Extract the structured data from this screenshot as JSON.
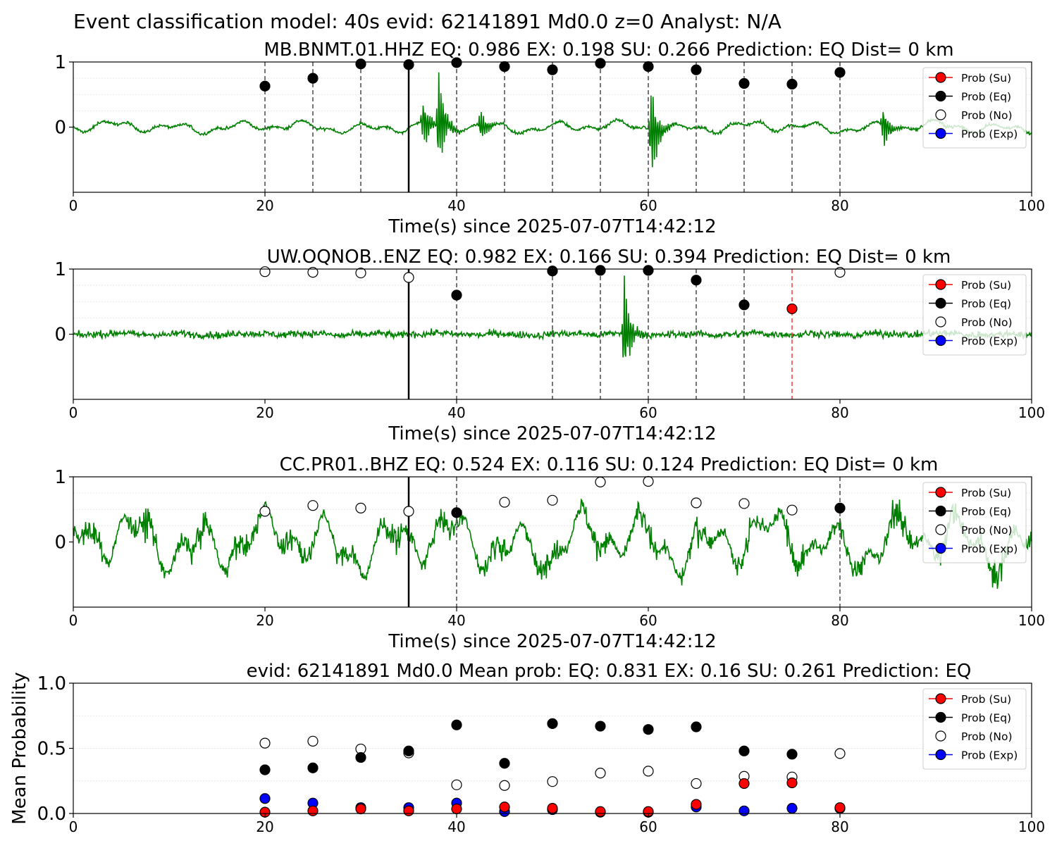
{
  "suptitle": "Event classification model: 40s evid: 62141891 Md0.0 z=0 Analyst: N/A",
  "legend": [
    {
      "label": "Prob (Su)",
      "color": "#ff0000",
      "fill": true
    },
    {
      "label": "Prob (Eq)",
      "color": "#000000",
      "fill": true
    },
    {
      "label": "Prob (No)",
      "color": "#000000",
      "fill": false
    },
    {
      "label": "Prob (Exp)",
      "color": "#0000ff",
      "fill": true
    }
  ],
  "chart_data": [
    {
      "type": "line",
      "title": "MB.BNMT.01.HHZ   EQ: 0.986  EX: 0.198  SU: 0.266   Prediction: EQ    Dist= 0 km",
      "xlabel": "Time(s) since 2025-07-07T14:42:12",
      "ylabel": "",
      "xlim": [
        0,
        100
      ],
      "ylim": [
        -1,
        1
      ],
      "xticks": [
        "0",
        "20",
        "40",
        "60",
        "80",
        "100"
      ],
      "yticks": [
        "0",
        "1"
      ],
      "waveform_color": "#008000",
      "arrival_time": 35,
      "window_lines": [
        {
          "x": 20,
          "color": "#555555"
        },
        {
          "x": 25,
          "color": "#555555"
        },
        {
          "x": 30,
          "color": "#555555"
        },
        {
          "x": 40,
          "color": "#555555"
        },
        {
          "x": 45,
          "color": "#555555"
        },
        {
          "x": 50,
          "color": "#555555"
        },
        {
          "x": 55,
          "color": "#555555"
        },
        {
          "x": 60,
          "color": "#555555"
        },
        {
          "x": 65,
          "color": "#555555"
        },
        {
          "x": 70,
          "color": "#555555"
        },
        {
          "x": 75,
          "color": "#555555"
        },
        {
          "x": 80,
          "color": "#555555"
        }
      ],
      "points": [
        {
          "x": 20,
          "y": 0.63,
          "class": "Eq"
        },
        {
          "x": 25,
          "y": 0.75,
          "class": "Eq"
        },
        {
          "x": 30,
          "y": 0.97,
          "class": "Eq"
        },
        {
          "x": 35,
          "y": 0.96,
          "class": "Eq"
        },
        {
          "x": 40,
          "y": 0.99,
          "class": "Eq"
        },
        {
          "x": 45,
          "y": 0.93,
          "class": "Eq"
        },
        {
          "x": 50,
          "y": 0.88,
          "class": "Eq"
        },
        {
          "x": 55,
          "y": 0.98,
          "class": "Eq"
        },
        {
          "x": 60,
          "y": 0.93,
          "class": "Eq"
        },
        {
          "x": 65,
          "y": 0.88,
          "class": "Eq"
        },
        {
          "x": 70,
          "y": 0.67,
          "class": "Eq"
        },
        {
          "x": 75,
          "y": 0.66,
          "class": "Eq"
        },
        {
          "x": 80,
          "y": 0.84,
          "class": "Eq"
        }
      ],
      "bursts": [
        [
          36.5,
          0.45
        ],
        [
          38.1,
          0.9
        ],
        [
          42.5,
          0.28
        ],
        [
          60.3,
          0.95
        ],
        [
          84.5,
          0.4
        ]
      ],
      "noise_level": 0.04,
      "wave_amp": 0.09
    },
    {
      "type": "line",
      "title": "UW.OQNOB..ENZ   EQ: 0.982  EX: 0.166  SU: 0.394   Prediction: EQ    Dist= 0 km",
      "xlabel": "Time(s) since 2025-07-07T14:42:12",
      "ylabel": "",
      "xlim": [
        0,
        100
      ],
      "ylim": [
        -1,
        1
      ],
      "xticks": [
        "0",
        "20",
        "40",
        "60",
        "80",
        "100"
      ],
      "yticks": [
        "0",
        "1"
      ],
      "waveform_color": "#008000",
      "arrival_time": 35,
      "window_lines": [
        {
          "x": 40,
          "color": "#555555"
        },
        {
          "x": 50,
          "color": "#555555"
        },
        {
          "x": 55,
          "color": "#555555"
        },
        {
          "x": 60,
          "color": "#555555"
        },
        {
          "x": 65,
          "color": "#555555"
        },
        {
          "x": 70,
          "color": "#555555"
        },
        {
          "x": 75,
          "color": "#ff4444"
        }
      ],
      "points": [
        {
          "x": 20,
          "y": 0.96,
          "class": "No"
        },
        {
          "x": 25,
          "y": 0.95,
          "class": "No"
        },
        {
          "x": 30,
          "y": 0.94,
          "class": "No"
        },
        {
          "x": 35,
          "y": 0.87,
          "class": "No"
        },
        {
          "x": 40,
          "y": 0.6,
          "class": "Eq"
        },
        {
          "x": 50,
          "y": 0.97,
          "class": "Eq"
        },
        {
          "x": 55,
          "y": 0.98,
          "class": "Eq"
        },
        {
          "x": 60,
          "y": 0.98,
          "class": "Eq"
        },
        {
          "x": 65,
          "y": 0.83,
          "class": "Eq"
        },
        {
          "x": 70,
          "y": 0.45,
          "class": "Eq"
        },
        {
          "x": 75,
          "y": 0.39,
          "class": "Su"
        },
        {
          "x": 80,
          "y": 0.95,
          "class": "No"
        }
      ],
      "bursts": [
        [
          57.5,
          0.85
        ]
      ],
      "noise_level": 0.09,
      "wave_amp": 0.02
    },
    {
      "type": "line",
      "title": "CC.PR01..BHZ   EQ: 0.524  EX: 0.116  SU: 0.124   Prediction: EQ    Dist= 0 km",
      "xlabel": "Time(s) since 2025-07-07T14:42:12",
      "ylabel": "",
      "xlim": [
        0,
        100
      ],
      "ylim": [
        -1,
        1
      ],
      "xticks": [
        "0",
        "20",
        "40",
        "60",
        "80",
        "100"
      ],
      "yticks": [
        "0",
        "1"
      ],
      "waveform_color": "#008000",
      "arrival_time": 35,
      "window_lines": [
        {
          "x": 40,
          "color": "#555555"
        },
        {
          "x": 80,
          "color": "#555555"
        }
      ],
      "points": [
        {
          "x": 20,
          "y": 0.47,
          "class": "No"
        },
        {
          "x": 25,
          "y": 0.56,
          "class": "No"
        },
        {
          "x": 30,
          "y": 0.52,
          "class": "No"
        },
        {
          "x": 35,
          "y": 0.47,
          "class": "No"
        },
        {
          "x": 40,
          "y": 0.45,
          "class": "Eq"
        },
        {
          "x": 45,
          "y": 0.61,
          "class": "No"
        },
        {
          "x": 50,
          "y": 0.64,
          "class": "No"
        },
        {
          "x": 55,
          "y": 0.92,
          "class": "No"
        },
        {
          "x": 60,
          "y": 0.93,
          "class": "No"
        },
        {
          "x": 65,
          "y": 0.6,
          "class": "No"
        },
        {
          "x": 70,
          "y": 0.59,
          "class": "No"
        },
        {
          "x": 75,
          "y": 0.49,
          "class": "No"
        },
        {
          "x": 80,
          "y": 0.52,
          "class": "Eq"
        }
      ],
      "bursts": [],
      "noise_level": 0.12,
      "wave_amp": 0.45
    },
    {
      "type": "scatter",
      "title": "evid: 62141891  Md0.0   Mean prob:   EQ: 0.831  EX: 0.16  SU: 0.261   Prediction: EQ",
      "xlabel": "",
      "ylabel": "Mean Probability",
      "xlim": [
        0,
        100
      ],
      "ylim": [
        0,
        1
      ],
      "xticks": [
        "0",
        "20",
        "40",
        "60",
        "80",
        "100"
      ],
      "yticks": [
        "0.0",
        "0.5",
        "1.0"
      ],
      "series": [
        {
          "name": "Prob (No)",
          "class": "No",
          "x": [
            20,
            25,
            30,
            35,
            40,
            45,
            50,
            55,
            60,
            65,
            70,
            75,
            80
          ],
          "values": [
            0.54,
            0.555,
            0.495,
            0.465,
            0.22,
            0.215,
            0.245,
            0.31,
            0.325,
            0.23,
            0.285,
            0.28,
            0.46
          ]
        },
        {
          "name": "Prob (Eq)",
          "class": "Eq",
          "x": [
            20,
            25,
            30,
            35,
            40,
            45,
            50,
            55,
            60,
            65,
            70,
            75,
            80
          ],
          "values": [
            0.335,
            0.35,
            0.43,
            0.48,
            0.68,
            0.385,
            0.69,
            0.67,
            0.645,
            0.665,
            0.48,
            0.455,
            0.04
          ]
        },
        {
          "name": "Prob (Exp)",
          "class": "Exp",
          "x": [
            20,
            25,
            30,
            35,
            40,
            45,
            50,
            55,
            60,
            65,
            70,
            75,
            80
          ],
          "values": [
            0.115,
            0.08,
            0.045,
            0.045,
            0.08,
            0.015,
            0.03,
            0.01,
            0.01,
            0.05,
            0.02,
            0.04,
            0.04
          ]
        },
        {
          "name": "Prob (Su)",
          "class": "Su",
          "x": [
            20,
            25,
            30,
            35,
            40,
            45,
            50,
            55,
            60,
            65,
            70,
            75,
            80
          ],
          "values": [
            0.01,
            0.02,
            0.035,
            0.02,
            0.035,
            0.05,
            0.04,
            0.015,
            0.015,
            0.07,
            0.23,
            0.235,
            0.045
          ]
        }
      ]
    }
  ]
}
